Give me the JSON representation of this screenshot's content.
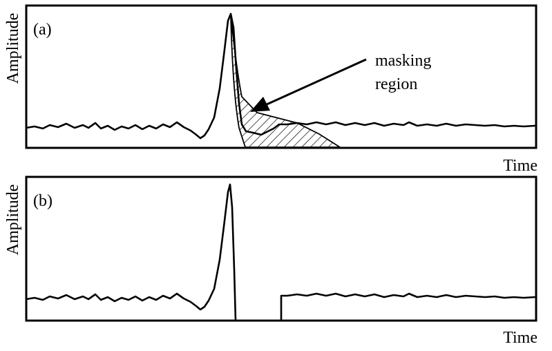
{
  "figure": {
    "panels": [
      {
        "label": "(a)",
        "ylabel": "Amplitude",
        "xlabel": "Time",
        "annotation": {
          "line1": "masking",
          "line2": "region"
        }
      },
      {
        "label": "(b)",
        "ylabel": "Amplitude",
        "xlabel": "Time"
      }
    ],
    "colors": {
      "stroke": "#000000",
      "background": "#ffffff"
    }
  }
}
